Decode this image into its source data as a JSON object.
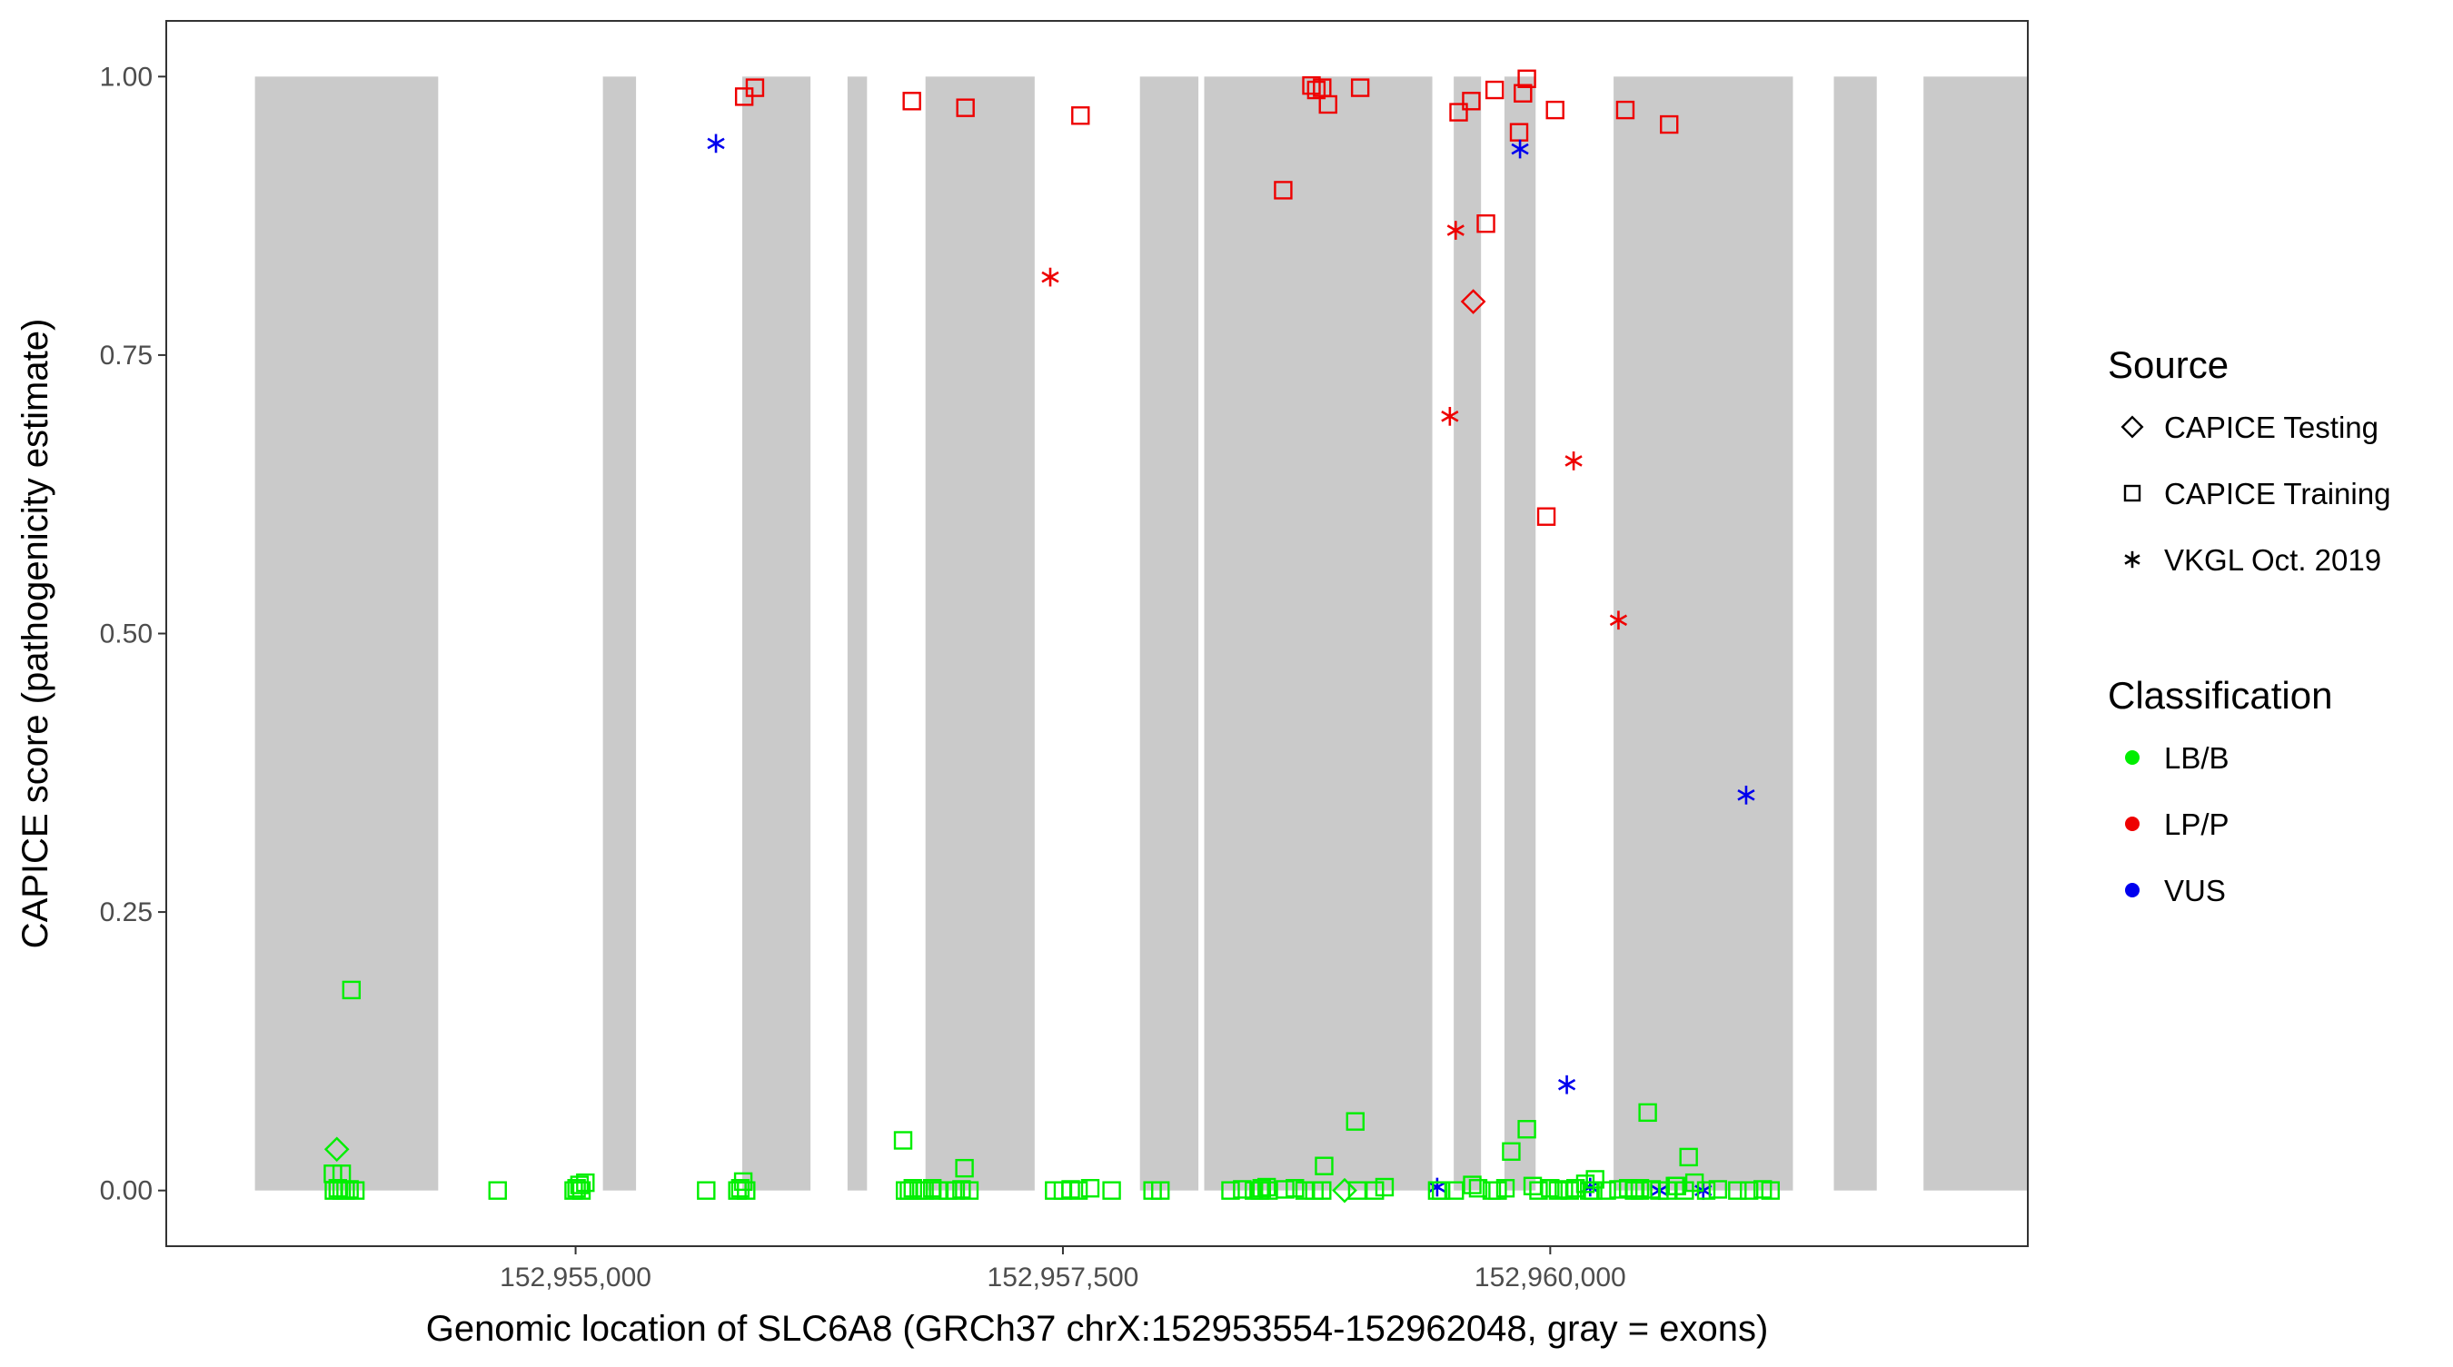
{
  "chart_data": {
    "type": "scatter",
    "title": "",
    "xlabel": "Genomic location of SLC6A8 (GRCh37 chrX:152953554-152962048, gray = exons)",
    "ylabel": "CAPICE score (pathogenicity estimate)",
    "xlim": [
      152952900,
      152962450
    ],
    "ylim": [
      -0.05,
      1.05
    ],
    "x_ticks": [
      152955000,
      152957500,
      152960000
    ],
    "x_tick_labels": [
      "152,955,000",
      "152,957,500",
      "152,960,000"
    ],
    "y_ticks": [
      0,
      0.25,
      0.5,
      0.75,
      1.0
    ],
    "y_tick_labels": [
      "0.00",
      "0.25",
      "0.50",
      "0.75",
      "1.00"
    ],
    "grid": false,
    "exon_color": "#cacaca",
    "exons": [
      [
        152953355,
        152954295
      ],
      [
        152955140,
        152955310
      ],
      [
        152955855,
        152956205
      ],
      [
        152956395,
        152956495
      ],
      [
        152956795,
        152957355
      ],
      [
        152957895,
        152958195
      ],
      [
        152958225,
        152959395
      ],
      [
        152959505,
        152959645
      ],
      [
        152959765,
        152959925
      ],
      [
        152960325,
        152961245
      ],
      [
        152961455,
        152961675
      ],
      [
        152961915,
        152963850
      ]
    ],
    "legends": [
      {
        "title": "Source",
        "entries": [
          {
            "label": "CAPICE Testing",
            "shape": "diamond"
          },
          {
            "label": "CAPICE Training",
            "shape": "square"
          },
          {
            "label": "VKGL Oct. 2019",
            "shape": "asterisk"
          }
        ]
      },
      {
        "title": "Classification",
        "entries": [
          {
            "label": "LB/B",
            "color": "#00ee00"
          },
          {
            "label": "LP/P",
            "color": "#ee0000"
          },
          {
            "label": "VUS",
            "color": "#0000ee"
          }
        ]
      }
    ],
    "legend_placement": "right",
    "series": [
      {
        "source": "CAPICE Training",
        "classification": "LP/P",
        "x": [
          152955865,
          152955920,
          152956725,
          152957000,
          152957590,
          152958630,
          152958775,
          152958800,
          152958830,
          152958860,
          152959025,
          152959530,
          152959595,
          152959715,
          152959670,
          152959840,
          152959860,
          152959880,
          152959980,
          152960385,
          152960025,
          152960610
        ],
        "y": [
          0.982,
          0.99,
          0.978,
          0.972,
          0.965,
          0.898,
          0.992,
          0.988,
          0.99,
          0.975,
          0.99,
          0.968,
          0.978,
          0.988,
          0.868,
          0.95,
          0.985,
          0.998,
          0.605,
          0.97,
          0.97,
          0.957
        ]
      },
      {
        "source": "VKGL Oct. 2019",
        "classification": "LP/P",
        "x": [
          152957435,
          152959515,
          152959485,
          152960120,
          152960350
        ],
        "y": [
          0.82,
          0.862,
          0.695,
          0.655,
          0.512
        ]
      },
      {
        "source": "CAPICE Testing",
        "classification": "LP/P",
        "x": [
          152959605
        ],
        "y": [
          0.798
        ]
      },
      {
        "source": "VKGL Oct. 2019",
        "classification": "VUS",
        "x": [
          152955720,
          152959845,
          152961005,
          152960085,
          152960560,
          152959420,
          152960205,
          152960785
        ],
        "y": [
          0.94,
          0.935,
          0.355,
          0.095,
          0.0,
          0.003,
          0.003,
          0.0
        ]
      },
      {
        "source": "CAPICE Testing",
        "classification": "LB/B",
        "x": [
          152953775,
          152958945
        ],
        "y": [
          0.037,
          0.0
        ]
      },
      {
        "source": "CAPICE Training",
        "classification": "LB/B",
        "x": [
          152953850,
          152953755,
          152953800,
          152953760,
          152953780,
          152953800,
          152953820,
          152953840,
          152953870,
          152954600,
          152954990,
          152955005,
          152955020,
          152955030,
          152955050,
          152955670,
          152955830,
          152955845,
          152955860,
          152955875,
          152956680,
          152956690,
          152956710,
          152956730,
          152956760,
          152956790,
          152956830,
          152956860,
          152956910,
          152956950,
          152956980,
          152956995,
          152957020,
          152957455,
          152957500,
          152957540,
          152957580,
          152957640,
          152957750,
          152957960,
          152958000,
          152958360,
          152958420,
          152958480,
          152958510,
          152958520,
          152958545,
          152958555,
          152958640,
          152958690,
          152958740,
          152958790,
          152958830,
          152958840,
          152959000,
          152959010,
          152959100,
          152959150,
          152959420,
          152959440,
          152959510,
          152959600,
          152959630,
          152959700,
          152959730,
          152959770,
          152959800,
          152959880,
          152959910,
          152959940,
          152960000,
          152960040,
          152960070,
          152960100,
          152960180,
          152960220,
          152960290,
          152960350,
          152960400,
          152960430,
          152960460,
          152960520,
          152960600,
          152960650,
          152960690,
          152960740,
          152960800,
          152960860,
          152960960,
          152961020,
          152961090,
          152961130,
          152960200,
          152960560,
          152960500,
          152960460,
          152960640,
          152960710,
          152960230,
          152960130
        ],
        "y": [
          0.18,
          0.015,
          0.015,
          0.0,
          0.002,
          0.0,
          0.0,
          0.001,
          0.0,
          0.0,
          0.0,
          0.002,
          0.005,
          0.0,
          0.007,
          0.0,
          0.0,
          0.002,
          0.008,
          0.0,
          0.045,
          0.0,
          0.0,
          0.002,
          0.0,
          0.0,
          0.002,
          0.0,
          0.0,
          0.0,
          0.001,
          0.02,
          0.0,
          0.0,
          0.0,
          0.001,
          0.0,
          0.002,
          0.0,
          0.0,
          0.0,
          0.0,
          0.001,
          0.0,
          0.0,
          0.002,
          0.003,
          0.0,
          0.001,
          0.002,
          0.0,
          0.0,
          0.0,
          0.022,
          0.062,
          0.0,
          0.0,
          0.003,
          0.0,
          0.0,
          0.0,
          0.005,
          0.002,
          0.0,
          0.0,
          0.002,
          0.035,
          0.055,
          0.004,
          0.0,
          0.002,
          0.0,
          0.001,
          0.0,
          0.006,
          0.0,
          0.0,
          0.001,
          0.002,
          0.0,
          0.0,
          0.001,
          0.0,
          0.004,
          0.0,
          0.007,
          0.0,
          0.001,
          0.0,
          0.0,
          0.001,
          0.0,
          0.0,
          0.0,
          0.07,
          0.002,
          0.004,
          0.03,
          0.01,
          0.002
        ]
      }
    ]
  }
}
